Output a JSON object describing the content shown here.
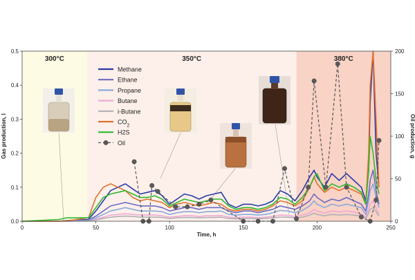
{
  "chart_data": {
    "type": "line",
    "xlabel": "Time, h",
    "ylabel": "Gas production, l",
    "y2label": "Oil production, g",
    "xlim": [
      0,
      250
    ],
    "ylim": [
      0,
      0.5
    ],
    "y2lim": [
      0,
      200
    ],
    "xticks": [
      "0",
      "50",
      "100",
      "150",
      "200",
      "250"
    ],
    "yticks": [
      "0.0",
      "0.1",
      "0.2",
      "0.3",
      "0.4",
      "0.5"
    ],
    "y2ticks": [
      "0",
      "50",
      "100",
      "150",
      "200"
    ],
    "grid": false,
    "legend_position": "upper-left",
    "zones": [
      {
        "label": "300°C",
        "x0": 0,
        "x1": 44,
        "color": "#fdfbe4"
      },
      {
        "label": "350°C",
        "x0": 44,
        "x1": 186,
        "color": "#fdf0ea"
      },
      {
        "label": "380°C",
        "x0": 186,
        "x1": 250,
        "color": "#f8d3c6"
      }
    ],
    "series": [
      {
        "name": "Methane",
        "color": "#2a3aa5",
        "axis": "left",
        "x": [
          0,
          25,
          30,
          45,
          50,
          55,
          60,
          65,
          70,
          75,
          80,
          85,
          90,
          95,
          100,
          105,
          110,
          115,
          120,
          125,
          130,
          135,
          140,
          145,
          150,
          155,
          160,
          165,
          170,
          175,
          180,
          185,
          190,
          195,
          198,
          200,
          205,
          210,
          215,
          220,
          225,
          230,
          233,
          235,
          236,
          238,
          240,
          242
        ],
        "y": [
          0,
          0,
          0.002,
          0.005,
          0.03,
          0.06,
          0.09,
          0.1,
          0.11,
          0.095,
          0.08,
          0.085,
          0.09,
          0.075,
          0.05,
          0.065,
          0.08,
          0.075,
          0.065,
          0.075,
          0.08,
          0.085,
          0.05,
          0.04,
          0.05,
          0.05,
          0.045,
          0.05,
          0.06,
          0.09,
          0.08,
          0.06,
          0.09,
          0.13,
          0.15,
          0.13,
          0.1,
          0.14,
          0.12,
          0.14,
          0.12,
          0.1,
          0.06,
          0.15,
          0.35,
          0.5,
          0.2,
          0.1
        ]
      },
      {
        "name": "Ethane",
        "color": "#6a6ac4",
        "axis": "left",
        "x": [
          0,
          25,
          30,
          45,
          50,
          55,
          60,
          65,
          70,
          75,
          80,
          85,
          90,
          95,
          100,
          105,
          110,
          115,
          120,
          125,
          130,
          135,
          140,
          145,
          150,
          155,
          160,
          165,
          170,
          175,
          180,
          185,
          190,
          195,
          198,
          200,
          205,
          210,
          215,
          220,
          225,
          230,
          233,
          235,
          236,
          238,
          240,
          242
        ],
        "y": [
          0,
          0,
          0.001,
          0.003,
          0.015,
          0.03,
          0.045,
          0.05,
          0.055,
          0.05,
          0.045,
          0.045,
          0.045,
          0.04,
          0.03,
          0.035,
          0.04,
          0.04,
          0.035,
          0.04,
          0.04,
          0.04,
          0.03,
          0.025,
          0.03,
          0.03,
          0.025,
          0.03,
          0.035,
          0.045,
          0.04,
          0.035,
          0.045,
          0.06,
          0.08,
          0.07,
          0.055,
          0.065,
          0.06,
          0.07,
          0.06,
          0.05,
          0.03,
          0.08,
          0.12,
          0.15,
          0.09,
          0.05
        ]
      },
      {
        "name": "Propane",
        "color": "#88a8dc",
        "axis": "left",
        "x": [
          0,
          25,
          30,
          45,
          50,
          55,
          60,
          65,
          70,
          75,
          80,
          85,
          90,
          95,
          100,
          105,
          110,
          115,
          120,
          125,
          130,
          135,
          140,
          145,
          150,
          155,
          160,
          165,
          170,
          175,
          180,
          185,
          190,
          195,
          198,
          200,
          205,
          210,
          215,
          220,
          225,
          230,
          233,
          235,
          236,
          238,
          240,
          242
        ],
        "y": [
          0,
          0,
          0.001,
          0.002,
          0.01,
          0.02,
          0.03,
          0.035,
          0.04,
          0.035,
          0.03,
          0.03,
          0.03,
          0.028,
          0.02,
          0.025,
          0.028,
          0.028,
          0.025,
          0.028,
          0.028,
          0.03,
          0.02,
          0.018,
          0.02,
          0.02,
          0.018,
          0.02,
          0.025,
          0.032,
          0.03,
          0.025,
          0.032,
          0.045,
          0.06,
          0.05,
          0.04,
          0.05,
          0.045,
          0.05,
          0.045,
          0.04,
          0.02,
          0.06,
          0.09,
          0.11,
          0.07,
          0.04
        ]
      },
      {
        "name": "Butane",
        "color": "#f0a8d4",
        "axis": "left",
        "x": [
          0,
          25,
          30,
          45,
          50,
          55,
          60,
          65,
          70,
          75,
          80,
          85,
          90,
          95,
          100,
          105,
          110,
          115,
          120,
          125,
          130,
          135,
          140,
          145,
          150,
          155,
          160,
          165,
          170,
          175,
          180,
          185,
          190,
          195,
          198,
          200,
          205,
          210,
          215,
          220,
          225,
          230,
          233,
          235,
          236,
          238,
          240,
          242
        ],
        "y": [
          0,
          0,
          0,
          0.001,
          0.006,
          0.012,
          0.018,
          0.02,
          0.022,
          0.02,
          0.018,
          0.018,
          0.018,
          0.016,
          0.012,
          0.014,
          0.016,
          0.016,
          0.014,
          0.016,
          0.016,
          0.017,
          0.012,
          0.01,
          0.012,
          0.012,
          0.01,
          0.012,
          0.014,
          0.018,
          0.017,
          0.014,
          0.018,
          0.025,
          0.035,
          0.03,
          0.024,
          0.03,
          0.027,
          0.03,
          0.027,
          0.022,
          0.012,
          0.035,
          0.05,
          0.06,
          0.04,
          0.02
        ]
      },
      {
        "name": "i-Butane",
        "color": "#b0b0b8",
        "axis": "left",
        "x": [
          0,
          25,
          30,
          45,
          50,
          55,
          60,
          65,
          70,
          75,
          80,
          85,
          90,
          95,
          100,
          105,
          110,
          115,
          120,
          125,
          130,
          135,
          140,
          145,
          150,
          155,
          160,
          165,
          170,
          175,
          180,
          185,
          190,
          195,
          198,
          200,
          205,
          210,
          215,
          220,
          225,
          230,
          233,
          235,
          236,
          238,
          240,
          242
        ],
        "y": [
          0,
          0,
          0,
          0.001,
          0.004,
          0.008,
          0.012,
          0.014,
          0.015,
          0.014,
          0.012,
          0.012,
          0.012,
          0.011,
          0.008,
          0.01,
          0.011,
          0.011,
          0.01,
          0.011,
          0.011,
          0.012,
          0.008,
          0.007,
          0.008,
          0.008,
          0.007,
          0.008,
          0.01,
          0.012,
          0.012,
          0.01,
          0.012,
          0.018,
          0.024,
          0.02,
          0.016,
          0.02,
          0.018,
          0.02,
          0.018,
          0.015,
          0.008,
          0.025,
          0.035,
          0.04,
          0.028,
          0.015
        ]
      },
      {
        "name": "CO2",
        "color": "#e2702a",
        "axis": "left",
        "x": [
          0,
          25,
          30,
          45,
          50,
          55,
          60,
          65,
          70,
          75,
          80,
          85,
          90,
          95,
          100,
          105,
          110,
          115,
          120,
          125,
          130,
          135,
          140,
          145,
          150,
          155,
          160,
          165,
          170,
          175,
          180,
          185,
          190,
          195,
          198,
          200,
          205,
          210,
          215,
          220,
          225,
          230,
          233,
          235,
          236,
          238,
          240,
          242
        ],
        "y": [
          0,
          0,
          0.001,
          0.01,
          0.07,
          0.1,
          0.11,
          0.1,
          0.09,
          0.07,
          0.06,
          0.065,
          0.06,
          0.055,
          0.04,
          0.05,
          0.055,
          0.05,
          0.045,
          0.05,
          0.055,
          0.05,
          0.035,
          0.03,
          0.035,
          0.035,
          0.03,
          0.035,
          0.045,
          0.06,
          0.055,
          0.045,
          0.06,
          0.1,
          0.13,
          0.11,
          0.085,
          0.1,
          0.09,
          0.1,
          0.09,
          0.08,
          0.05,
          0.2,
          0.4,
          0.5,
          0.3,
          0.1
        ]
      },
      {
        "name": "H2S",
        "color": "#2eb82e",
        "axis": "left",
        "x": [
          0,
          25,
          30,
          45,
          50,
          55,
          60,
          65,
          70,
          75,
          80,
          85,
          90,
          95,
          100,
          105,
          110,
          115,
          120,
          125,
          130,
          135,
          140,
          145,
          150,
          155,
          160,
          165,
          170,
          175,
          180,
          185,
          190,
          195,
          198,
          200,
          205,
          210,
          215,
          220,
          225,
          230,
          233,
          235,
          236,
          238,
          240,
          242
        ],
        "y": [
          0,
          0.005,
          0.01,
          0.01,
          0.04,
          0.07,
          0.08,
          0.085,
          0.09,
          0.08,
          0.07,
          0.07,
          0.075,
          0.065,
          0.045,
          0.055,
          0.065,
          0.06,
          0.055,
          0.06,
          0.065,
          0.065,
          0.045,
          0.035,
          0.04,
          0.04,
          0.035,
          0.04,
          0.05,
          0.07,
          0.065,
          0.05,
          0.07,
          0.1,
          0.13,
          0.14,
          0.09,
          0.11,
          0.1,
          0.11,
          0.1,
          0.085,
          0.05,
          0.15,
          0.25,
          0.2,
          0.12,
          0.08
        ]
      },
      {
        "name": "Oil",
        "color": "#555555",
        "axis": "right",
        "dashed": true,
        "markers": true,
        "x": [
          76,
          82,
          86,
          88,
          92,
          104,
          112,
          120,
          128,
          150,
          160,
          170,
          178,
          186,
          194,
          198,
          206,
          214,
          220,
          230,
          236,
          240,
          242
        ],
        "y": [
          70,
          0,
          0,
          42,
          35,
          17,
          17,
          20,
          25,
          0,
          0,
          0,
          62,
          3,
          40,
          165,
          40,
          185,
          40,
          5,
          0,
          25,
          95
        ]
      }
    ]
  }
}
